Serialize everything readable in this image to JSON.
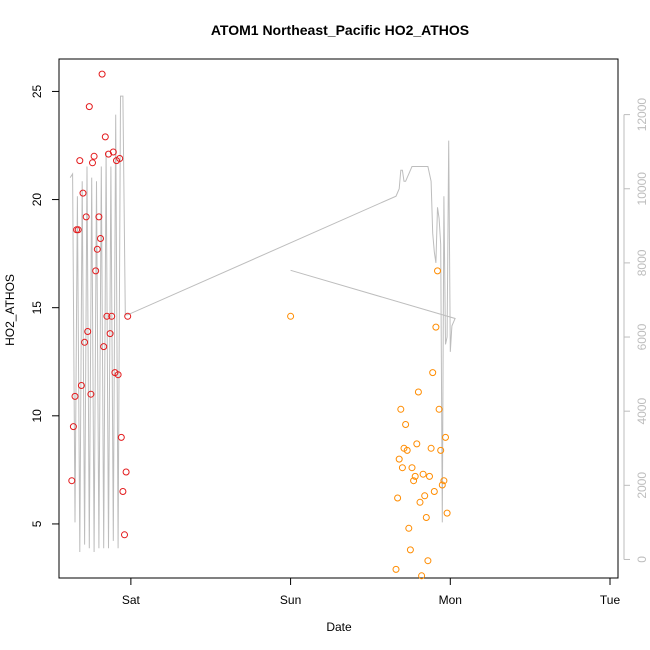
{
  "chart_data": {
    "type": "scatter",
    "title": "ATOM1 Northeast_Pacific HO2_ATHOS",
    "xlabel": "Date",
    "ylabel": "HO2_ATHOS",
    "x_ticks": [
      "Sat",
      "Sun",
      "Mon",
      "Tue"
    ],
    "x_range": [
      -1.45,
      2.05
    ],
    "ylim": [
      2.5,
      26.5
    ],
    "y_ticks": [
      5,
      10,
      15,
      20,
      25
    ],
    "y2_ticks": [
      0,
      2000,
      4000,
      6000,
      8000,
      10000,
      12000
    ],
    "y2lim": [
      -500,
      13500
    ],
    "series": [
      {
        "color": "#e31a1c",
        "marker": "circle-open",
        "x": [
          -1.37,
          -1.36,
          -1.35,
          -1.34,
          -1.33,
          -1.32,
          -1.31,
          -1.3,
          -1.29,
          -1.28,
          -1.27,
          -1.26,
          -1.25,
          -1.24,
          -1.23,
          -1.22,
          -1.21,
          -1.2,
          -1.19,
          -1.18,
          -1.17,
          -1.16,
          -1.15,
          -1.14,
          -1.13,
          -1.12,
          -1.11,
          -1.1,
          -1.09,
          -1.08,
          -1.07,
          -1.06,
          -1.05,
          -1.04,
          -1.03,
          -1.02
        ],
        "y": [
          7.0,
          9.5,
          10.9,
          18.6,
          18.6,
          21.8,
          11.4,
          20.3,
          13.4,
          19.2,
          13.9,
          24.3,
          11.0,
          21.7,
          22.0,
          16.7,
          17.7,
          19.2,
          18.2,
          25.8,
          13.2,
          22.9,
          14.6,
          22.1,
          13.8,
          14.6,
          22.2,
          12.0,
          21.8,
          11.9,
          21.9,
          9.0,
          6.5,
          4.5,
          7.4,
          14.6
        ]
      },
      {
        "color": "#ff8c00",
        "marker": "circle-open",
        "x": [
          0.0,
          0.66,
          0.67,
          0.68,
          0.69,
          0.7,
          0.71,
          0.72,
          0.73,
          0.74,
          0.75,
          0.76,
          0.77,
          0.78,
          0.79,
          0.8,
          0.81,
          0.82,
          0.83,
          0.84,
          0.85,
          0.86,
          0.87,
          0.88,
          0.89,
          0.9,
          0.91,
          0.92,
          0.93,
          0.94,
          0.95,
          0.96,
          0.97,
          0.98
        ],
        "y": [
          14.6,
          2.9,
          6.2,
          8.0,
          10.3,
          7.6,
          8.5,
          9.6,
          8.4,
          4.8,
          3.8,
          7.6,
          7.0,
          7.2,
          8.7,
          11.1,
          6.0,
          2.6,
          7.3,
          6.3,
          5.3,
          3.3,
          7.2,
          8.5,
          12.0,
          6.5,
          14.1,
          16.7,
          10.3,
          8.4,
          6.8,
          7.0,
          9.0,
          5.5
        ]
      }
    ],
    "overlay": {
      "color": "#bdbdbd",
      "axis": "right",
      "x": [
        -1.38,
        -1.365,
        -1.35,
        -1.335,
        -1.32,
        -1.305,
        -1.29,
        -1.275,
        -1.26,
        -1.245,
        -1.23,
        -1.215,
        -1.2,
        -1.185,
        -1.17,
        -1.155,
        -1.14,
        -1.125,
        -1.11,
        -1.095,
        -1.08,
        -1.065,
        -1.05,
        -1.035,
        -1.02,
        0.66,
        0.67,
        0.68,
        0.69,
        0.7,
        0.71,
        0.72,
        0.73,
        0.74,
        0.75,
        0.76,
        0.77,
        0.78,
        0.79,
        0.8,
        0.81,
        0.82,
        0.83,
        0.84,
        0.85,
        0.86,
        0.87,
        0.88,
        0.89,
        0.9,
        0.91,
        0.92,
        0.93,
        0.94,
        0.95,
        0.96,
        0.97,
        0.98,
        0.99,
        1.0,
        1.01,
        1.02,
        1.03,
        0.0
      ],
      "y": [
        10300,
        10400,
        1000,
        9800,
        200,
        10200,
        400,
        10600,
        300,
        10300,
        200,
        10200,
        300,
        10600,
        300,
        11000,
        300,
        10600,
        500,
        12000,
        300,
        12500,
        12500,
        6600,
        6600,
        9800,
        9900,
        10000,
        10500,
        10500,
        10200,
        10200,
        10300,
        10400,
        10500,
        10600,
        10600,
        10600,
        10600,
        10600,
        10600,
        10600,
        10600,
        10600,
        10600,
        10600,
        10400,
        10200,
        8800,
        8300,
        8000,
        9500,
        9200,
        8500,
        1000,
        9800,
        5800,
        6000,
        11300,
        5600,
        6300,
        6400,
        6500,
        7800
      ]
    }
  }
}
